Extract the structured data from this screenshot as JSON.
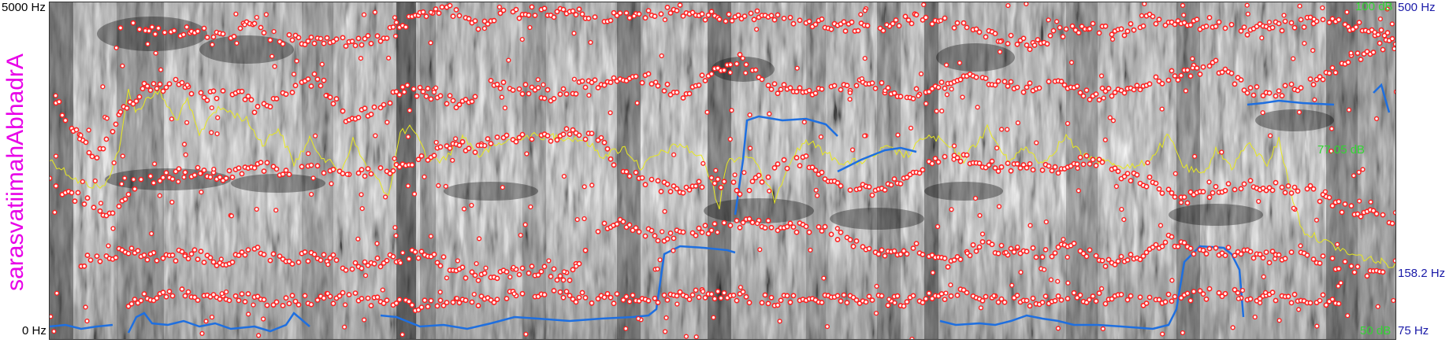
{
  "title": "sarasvatiimahAbhadrA",
  "freq_axis": {
    "top": "5000 Hz",
    "bottom": "0 Hz"
  },
  "pitch_axis": {
    "top": "500 Hz",
    "mid": "158.2 Hz",
    "bottom": "75 Hz"
  },
  "intensity_axis": {
    "top": "100 dB",
    "mid": "77.05 dB",
    "bottom": "50 dB"
  },
  "colors": {
    "formant": "#ff2020",
    "pitch": "#1e6fe0",
    "intensity": "#e8e820",
    "title": "#e800e8"
  }
}
